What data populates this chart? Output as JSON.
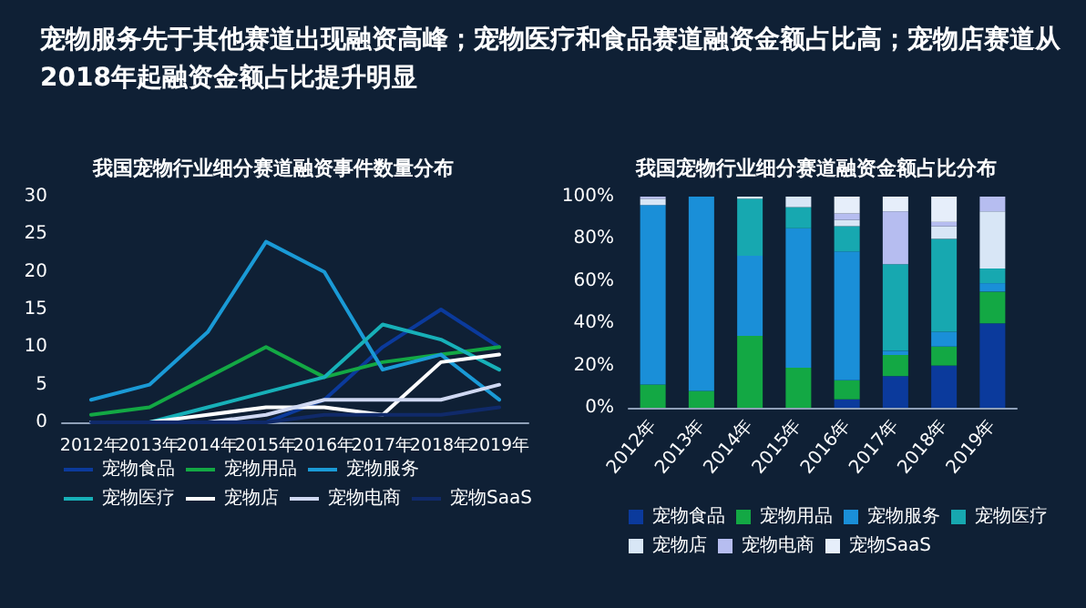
{
  "chart_data": [
    {
      "type": "line",
      "annotations": [
        "宠物服务先于其他赛道出现融资高峰；宠物医疗和食品赛道融资金额占比高；宠物店赛道从2018年起融资金额占比提升明显"
      ],
      "title": "我国宠物行业细分赛道融资事件数量分布",
      "categories": [
        "2012年",
        "2013年",
        "2014年",
        "2015年",
        "2016年",
        "2017年",
        "2018年",
        "2019年"
      ],
      "ylim": [
        0,
        30
      ],
      "yticks": [
        0,
        5,
        10,
        15,
        20,
        25,
        30
      ],
      "grid": false,
      "legend": "bottom",
      "marker": "none",
      "line_style": "solid",
      "series": [
        {
          "name": "宠物食品",
          "color": "#0b3a9c",
          "values": [
            0,
            0,
            0,
            0,
            3,
            10,
            15,
            10
          ]
        },
        {
          "name": "宠物用品",
          "color": "#13a844",
          "values": [
            1,
            2,
            6,
            10,
            6,
            8,
            9,
            10
          ]
        },
        {
          "name": "宠物服务",
          "color": "#1a9ad6",
          "values": [
            3,
            5,
            12,
            24,
            20,
            7,
            9,
            3
          ]
        },
        {
          "name": "宠物医疗",
          "color": "#17b0b8",
          "values": [
            0,
            0,
            2,
            4,
            6,
            13,
            11,
            7
          ]
        },
        {
          "name": "宠物店",
          "color": "#ffffff",
          "values": [
            0,
            0,
            1,
            2,
            2,
            1,
            8,
            9
          ]
        },
        {
          "name": "宠物电商",
          "color": "#cfd8f2",
          "values": [
            0,
            0,
            0,
            1,
            3,
            3,
            3,
            5
          ]
        },
        {
          "name": "宠物SaaS",
          "color": "#102a6a",
          "values": [
            0,
            0,
            0,
            0,
            1,
            1,
            1,
            2
          ]
        }
      ]
    },
    {
      "type": "bar",
      "stacked": true,
      "title": "我国宠物行业细分赛道融资金额占比分布",
      "categories": [
        "2012年",
        "2013年",
        "2014年",
        "2015年",
        "2016年",
        "2017年",
        "2018年",
        "2019年"
      ],
      "ylim": [
        0,
        100
      ],
      "yticks": [
        {
          "value": 0,
          "label": "0%"
        },
        {
          "value": 20,
          "label": "20%"
        },
        {
          "value": 40,
          "label": "40%"
        },
        {
          "value": 60,
          "label": "60%"
        },
        {
          "value": 80,
          "label": "80%"
        },
        {
          "value": 100,
          "label": "100%"
        }
      ],
      "grid": false,
      "legend": "bottom",
      "series": [
        {
          "name": "宠物食品",
          "color": "#0b3a9c",
          "values": [
            0,
            0,
            0,
            0,
            4,
            15,
            20,
            40
          ]
        },
        {
          "name": "宠物用品",
          "color": "#13a844",
          "values": [
            11,
            8,
            34,
            19,
            9,
            10,
            9,
            15
          ]
        },
        {
          "name": "宠物服务",
          "color": "#1a8fd8",
          "values": [
            85,
            92,
            38,
            66,
            61,
            2,
            7,
            4
          ]
        },
        {
          "name": "宠物医疗",
          "color": "#17a8b0",
          "values": [
            0,
            0,
            27,
            10,
            12,
            41,
            44,
            7
          ]
        },
        {
          "name": "宠物店",
          "color": "#d8e6f6",
          "values": [
            3,
            0,
            1,
            5,
            3,
            0,
            6,
            27
          ]
        },
        {
          "name": "宠物电商",
          "color": "#b6bdf0",
          "values": [
            1,
            0,
            0,
            0,
            3,
            25,
            2,
            7
          ]
        },
        {
          "name": "宠物SaaS",
          "color": "#e6eefa",
          "values": [
            0,
            0,
            0,
            0,
            8,
            7,
            12,
            0
          ]
        }
      ]
    }
  ]
}
